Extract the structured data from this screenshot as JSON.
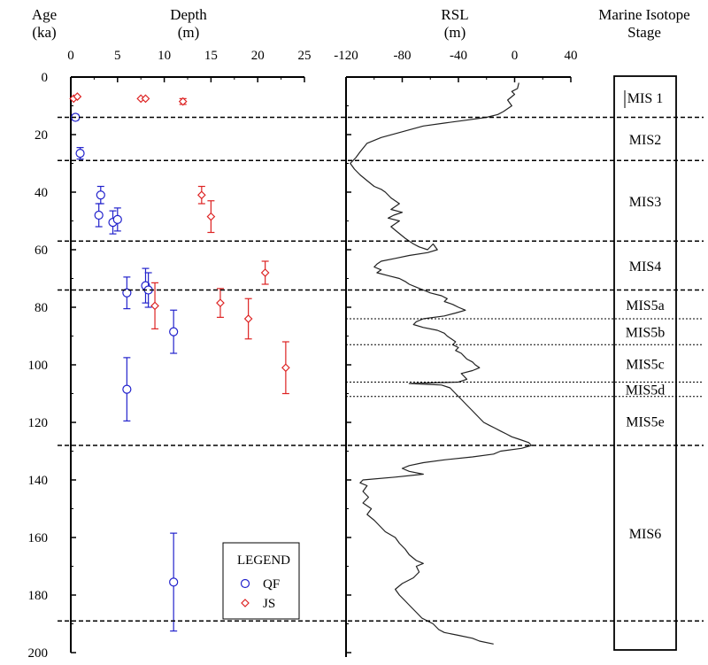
{
  "chart_data": [
    {
      "type": "scatter",
      "panel": "depth",
      "y_title_line1": "Age",
      "y_title_line2": "(ka)",
      "x_title_line1": "Depth",
      "x_title_line2": "(m)",
      "xlim": [
        0,
        25
      ],
      "ylim": [
        0,
        200
      ],
      "x_ticks": [
        "0",
        "5",
        "10",
        "15",
        "20",
        "25"
      ],
      "y_ticks": [
        "0",
        "20",
        "40",
        "60",
        "80",
        "100",
        "120",
        "140",
        "160",
        "180",
        "200"
      ],
      "x_tick_values": [
        0,
        5,
        10,
        15,
        20,
        25
      ],
      "y_tick_values": [
        0,
        20,
        40,
        60,
        80,
        100,
        120,
        140,
        160,
        180,
        200
      ],
      "legend_title": "LEGEND",
      "legend_position": "bottom-right",
      "series": [
        {
          "name": "QF",
          "marker": "circle",
          "color": "#2222cc",
          "points": [
            {
              "x": 0.5,
              "y": 14,
              "err": 1
            },
            {
              "x": 1,
              "y": 26.5,
              "err": 2
            },
            {
              "x": 3.2,
              "y": 41,
              "err": 3
            },
            {
              "x": 3,
              "y": 48,
              "err": 4
            },
            {
              "x": 4.5,
              "y": 50.5,
              "err": 4
            },
            {
              "x": 5,
              "y": 49.5,
              "err": 4
            },
            {
              "x": 6,
              "y": 75,
              "err": 5.5
            },
            {
              "x": 8,
              "y": 72.5,
              "err": 6
            },
            {
              "x": 8.3,
              "y": 74,
              "err": 6
            },
            {
              "x": 11,
              "y": 88.5,
              "err": 7.5
            },
            {
              "x": 6,
              "y": 108.5,
              "err": 11
            },
            {
              "x": 11,
              "y": 175.5,
              "err": 17
            }
          ]
        },
        {
          "name": "JS",
          "marker": "diamond",
          "color": "#dd2222",
          "points": [
            {
              "x": 0.3,
              "y": 7.5,
              "err": 0
            },
            {
              "x": 0.7,
              "y": 6.8,
              "err": 0
            },
            {
              "x": 7.5,
              "y": 7.5,
              "err": 0
            },
            {
              "x": 8,
              "y": 7.5,
              "err": 0
            },
            {
              "x": 12,
              "y": 8.5,
              "err": 1
            },
            {
              "x": 14,
              "y": 41,
              "err": 3
            },
            {
              "x": 15,
              "y": 48.5,
              "err": 5.5
            },
            {
              "x": 20.8,
              "y": 68,
              "err": 4
            },
            {
              "x": 9,
              "y": 79.5,
              "err": 8
            },
            {
              "x": 16,
              "y": 78.5,
              "err": 5
            },
            {
              "x": 19,
              "y": 84,
              "err": 7
            },
            {
              "x": 23,
              "y": 101,
              "err": 9
            }
          ]
        }
      ]
    },
    {
      "type": "line",
      "panel": "rsl",
      "x_title_line1": "RSL",
      "x_title_line2": "(m)",
      "xlim": [
        -120,
        40
      ],
      "ylim": [
        0,
        200
      ],
      "x_ticks": [
        "-120",
        "-80",
        "-40",
        "0",
        "40"
      ],
      "x_tick_values": [
        -120,
        -80,
        -40,
        0,
        40
      ],
      "curve": [
        [
          3,
          2
        ],
        [
          2,
          4
        ],
        [
          -2,
          5
        ],
        [
          0,
          6
        ],
        [
          -5,
          8
        ],
        [
          -2,
          10
        ],
        [
          -8,
          12
        ],
        [
          -12,
          13
        ],
        [
          -20,
          14
        ],
        [
          -35,
          15
        ],
        [
          -50,
          16
        ],
        [
          -65,
          17
        ],
        [
          -80,
          19
        ],
        [
          -95,
          21
        ],
        [
          -105,
          23
        ],
        [
          -110,
          26
        ],
        [
          -113,
          28
        ],
        [
          -115,
          29
        ],
        [
          -117,
          30
        ],
        [
          -114,
          32
        ],
        [
          -110,
          34
        ],
        [
          -105,
          36
        ],
        [
          -100,
          38
        ],
        [
          -95,
          39
        ],
        [
          -92,
          40
        ],
        [
          -88,
          42
        ],
        [
          -82,
          44
        ],
        [
          -88,
          46
        ],
        [
          -80,
          47
        ],
        [
          -86,
          48
        ],
        [
          -90,
          49
        ],
        [
          -82,
          50
        ],
        [
          -88,
          52
        ],
        [
          -83,
          54
        ],
        [
          -78,
          56
        ],
        [
          -75,
          57
        ],
        [
          -72,
          58
        ],
        [
          -68,
          59
        ],
        [
          -62,
          60
        ],
        [
          -58,
          58
        ],
        [
          -55,
          60
        ],
        [
          -62,
          61
        ],
        [
          -75,
          62
        ],
        [
          -85,
          63
        ],
        [
          -95,
          64
        ],
        [
          -98,
          65
        ],
        [
          -100,
          66
        ],
        [
          -95,
          67
        ],
        [
          -98,
          68
        ],
        [
          -90,
          69
        ],
        [
          -82,
          70
        ],
        [
          -78,
          71
        ],
        [
          -75,
          72
        ],
        [
          -70,
          73
        ],
        [
          -65,
          74
        ],
        [
          -60,
          75
        ],
        [
          -52,
          76
        ],
        [
          -48,
          77
        ],
        [
          -50,
          78
        ],
        [
          -44,
          79
        ],
        [
          -40,
          80
        ],
        [
          -35,
          81
        ],
        [
          -42,
          82
        ],
        [
          -50,
          83
        ],
        [
          -65,
          84
        ],
        [
          -70,
          85
        ],
        [
          -72,
          86
        ],
        [
          -65,
          87
        ],
        [
          -55,
          88
        ],
        [
          -50,
          89
        ],
        [
          -48,
          90
        ],
        [
          -45,
          91
        ],
        [
          -42,
          92
        ],
        [
          -44,
          93
        ],
        [
          -40,
          94
        ],
        [
          -42,
          95
        ],
        [
          -38,
          96
        ],
        [
          -36,
          97
        ],
        [
          -34,
          98
        ],
        [
          -30,
          99
        ],
        [
          -28,
          100
        ],
        [
          -25,
          101
        ],
        [
          -30,
          102
        ],
        [
          -38,
          103
        ],
        [
          -36,
          104
        ],
        [
          -34,
          105
        ],
        [
          -40,
          106
        ],
        [
          -75,
          106.5
        ],
        [
          -52,
          107
        ],
        [
          -46,
          108
        ],
        [
          -42,
          110
        ],
        [
          -38,
          112
        ],
        [
          -34,
          114
        ],
        [
          -30,
          116
        ],
        [
          -26,
          118
        ],
        [
          -22,
          120
        ],
        [
          -18,
          121
        ],
        [
          -14,
          122
        ],
        [
          -10,
          123
        ],
        [
          -6,
          124
        ],
        [
          -2,
          125
        ],
        [
          4,
          126
        ],
        [
          10,
          127
        ],
        [
          12,
          128
        ],
        [
          5,
          129
        ],
        [
          -10,
          130
        ],
        [
          -15,
          131
        ],
        [
          -30,
          132
        ],
        [
          -50,
          133
        ],
        [
          -65,
          134
        ],
        [
          -75,
          135
        ],
        [
          -80,
          136
        ],
        [
          -75,
          137
        ],
        [
          -65,
          138
        ],
        [
          -85,
          139
        ],
        [
          -108,
          140
        ],
        [
          -110,
          141
        ],
        [
          -105,
          142
        ],
        [
          -108,
          144
        ],
        [
          -104,
          146
        ],
        [
          -108,
          148
        ],
        [
          -102,
          150
        ],
        [
          -105,
          152
        ],
        [
          -100,
          154
        ],
        [
          -96,
          156
        ],
        [
          -92,
          158
        ],
        [
          -85,
          160
        ],
        [
          -82,
          162
        ],
        [
          -78,
          164
        ],
        [
          -75,
          166
        ],
        [
          -70,
          168
        ],
        [
          -65,
          169
        ],
        [
          -70,
          170
        ],
        [
          -68,
          172
        ],
        [
          -72,
          174
        ],
        [
          -80,
          176
        ],
        [
          -85,
          178
        ],
        [
          -82,
          180
        ],
        [
          -78,
          182
        ],
        [
          -74,
          184
        ],
        [
          -70,
          186
        ],
        [
          -66,
          188
        ],
        [
          -62,
          189
        ],
        [
          -58,
          190
        ],
        [
          -54,
          192
        ],
        [
          -50,
          193
        ],
        [
          -40,
          194
        ],
        [
          -30,
          195
        ],
        [
          -25,
          196
        ],
        [
          -15,
          197
        ]
      ]
    },
    {
      "type": "table",
      "panel": "stages",
      "title_line1": "Marine Isotope",
      "title_line2": "Stage",
      "thick_boundaries": [
        14,
        29,
        57,
        74,
        128,
        189
      ],
      "thin_boundaries": [
        84,
        93,
        106,
        111
      ],
      "stages": [
        {
          "label": "MIS 1",
          "y": 7
        },
        {
          "label": "MIS2",
          "y": 21.5
        },
        {
          "label": "MIS3",
          "y": 43
        },
        {
          "label": "MIS4",
          "y": 65.5
        },
        {
          "label": "MIS5a",
          "y": 79
        },
        {
          "label": "MIS5b",
          "y": 88.5
        },
        {
          "label": "MIS5c",
          "y": 99.5
        },
        {
          "label": "MIS5d",
          "y": 108.5
        },
        {
          "label": "MIS5e",
          "y": 119.5
        },
        {
          "label": "MIS6",
          "y": 158.5
        }
      ]
    }
  ]
}
